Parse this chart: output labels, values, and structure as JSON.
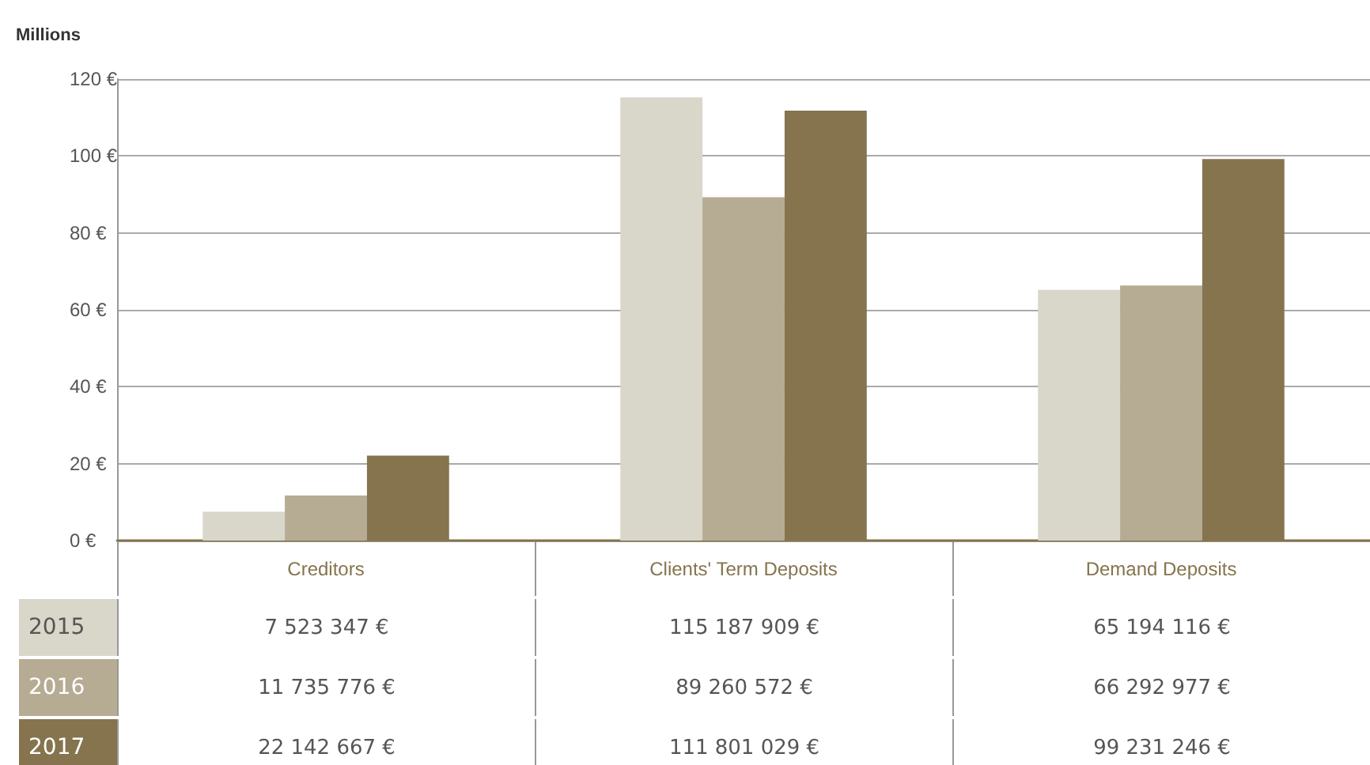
{
  "chart_data": [
    {
      "type": "bar",
      "ylabel": "Millions",
      "categories": [
        "Creditors",
        "Clients' Term Deposits",
        "Demand Deposits"
      ],
      "series": [
        {
          "name": "2015",
          "color": "#d9d6ca",
          "values": [
            7.5,
            115.2,
            65.2
          ]
        },
        {
          "name": "2016",
          "color": "#b6ab93",
          "values": [
            11.7,
            89.3,
            66.3
          ]
        },
        {
          "name": "2017",
          "color": "#85744e",
          "values": [
            22.1,
            111.8,
            99.2
          ]
        }
      ],
      "ylim": [
        0,
        120
      ],
      "yticks": [
        {
          "value": 0,
          "label": "0 €"
        },
        {
          "value": 20,
          "label": "20 €"
        },
        {
          "value": 40,
          "label": "40 €"
        },
        {
          "value": 60,
          "label": "60 €"
        },
        {
          "value": 80,
          "label": "80 €"
        },
        {
          "value": 100,
          "label": "100 €"
        },
        {
          "value": 120,
          "label": "120 €"
        }
      ],
      "grid": "y"
    },
    {
      "type": "other",
      "annotations": [
        "7 523 347 €",
        "115 187 909 €",
        "65 194 116 €",
        "11 735 776 €",
        "89 260 572 €",
        "66 292 977 €",
        "22 142 667 €",
        "111 801 029 €",
        "99 231 246 €"
      ]
    }
  ]
}
